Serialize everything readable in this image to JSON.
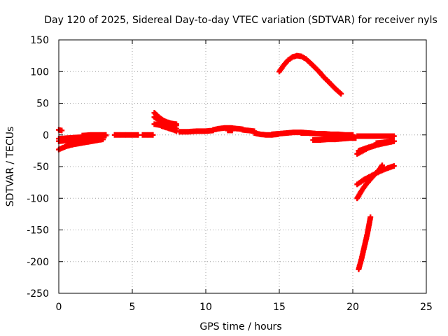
{
  "chart_data": {
    "type": "scatter",
    "title": "Day 120 of 2025, Sidereal Day-to-day VTEC variation (SDTVAR) for receiver nyls",
    "xlabel": "GPS time / hours",
    "ylabel": "SDTVAR / TECUs",
    "xlim": [
      0,
      25
    ],
    "ylim": [
      -250,
      150
    ],
    "xticks": [
      0,
      5,
      10,
      15,
      20,
      25
    ],
    "yticks": [
      -250,
      -200,
      -150,
      -100,
      -50,
      0,
      50,
      100,
      150
    ],
    "grid": true,
    "legend": "none",
    "marker": "plus",
    "color": "#ff0000",
    "series": [
      {
        "x": [
          0.0,
          0.2
        ],
        "y": [
          8,
          7
        ]
      },
      {
        "x": [
          0.0,
          0.5,
          1.0,
          1.5,
          2.0,
          2.5,
          3.0
        ],
        "y": [
          -23,
          -18,
          -15,
          -13,
          -11,
          -9,
          -7
        ]
      },
      {
        "x": [
          0.0,
          0.5,
          1.0,
          1.5,
          2.0,
          2.5,
          3.0
        ],
        "y": [
          -10,
          -9,
          -8,
          -6,
          -5,
          -4,
          -3
        ]
      },
      {
        "x": [
          0.0,
          0.6,
          1.2,
          1.8,
          2.4,
          3.2
        ],
        "y": [
          -6,
          -5,
          -4,
          -3,
          -2,
          -1
        ]
      },
      {
        "x": [
          1.6,
          2.2,
          2.8,
          3.2
        ],
        "y": [
          -1,
          0,
          0,
          0
        ]
      },
      {
        "x": [
          3.8,
          4.2,
          4.6,
          5.0,
          5.4
        ],
        "y": [
          0,
          0,
          0,
          0,
          0
        ]
      },
      {
        "x": [
          5.7,
          6.1,
          6.4
        ],
        "y": [
          0,
          0,
          0
        ]
      },
      {
        "x": [
          6.5,
          6.8,
          7.1,
          7.4,
          7.7,
          8.0
        ],
        "y": [
          35,
          28,
          23,
          20,
          18,
          17
        ]
      },
      {
        "x": [
          6.5,
          6.9,
          7.3,
          7.7,
          8.0
        ],
        "y": [
          28,
          22,
          19,
          16,
          15
        ]
      },
      {
        "x": [
          6.5,
          7.0,
          7.5,
          8.0
        ],
        "y": [
          17,
          15,
          12,
          10
        ]
      },
      {
        "x": [
          7.0,
          7.4,
          7.8,
          8.0
        ],
        "y": [
          14,
          11,
          8,
          6
        ]
      },
      {
        "x": [
          8.2,
          8.8,
          9.4,
          10.0,
          10.5
        ],
        "y": [
          5,
          5,
          6,
          6,
          7
        ]
      },
      {
        "x": [
          10.5,
          10.9,
          11.3,
          11.7,
          12.1,
          12.5
        ],
        "y": [
          8,
          10,
          11,
          11,
          10,
          9
        ]
      },
      {
        "x": [
          11.5,
          11.8
        ],
        "y": [
          7,
          7
        ]
      },
      {
        "x": [
          12.5,
          12.9,
          13.3
        ],
        "y": [
          8,
          7,
          6
        ]
      },
      {
        "x": [
          13.3,
          13.7,
          14.1,
          14.5,
          14.9
        ],
        "y": [
          3,
          1,
          0,
          0,
          1
        ]
      },
      {
        "x": [
          14.5,
          15.0,
          15.5,
          16.0,
          16.5,
          17.0,
          17.5,
          18.0,
          18.5,
          19.0,
          19.5,
          20.0
        ],
        "y": [
          1,
          2,
          3,
          4,
          4,
          3,
          2,
          1,
          0,
          -1,
          -2,
          -3
        ]
      },
      {
        "x": [
          16.5,
          17.0,
          17.5,
          18.0,
          18.5,
          19.0,
          19.5,
          20.0
        ],
        "y": [
          3,
          3,
          2,
          2,
          1,
          1,
          0,
          0
        ]
      },
      {
        "x": [
          17.3,
          17.8,
          18.3,
          18.8,
          19.3,
          19.8,
          20.2
        ],
        "y": [
          -8,
          -8,
          -7,
          -7,
          -6,
          -5,
          -5
        ]
      },
      {
        "x": [
          15.0,
          15.3,
          15.6,
          15.9,
          16.2,
          16.5,
          16.8,
          17.1,
          17.4,
          17.7,
          18.0,
          18.3,
          18.6,
          18.9,
          19.2
        ],
        "y": [
          100,
          110,
          118,
          123,
          125,
          124,
          120,
          114,
          107,
          100,
          92,
          85,
          78,
          71,
          65
        ]
      },
      {
        "x": [
          20.4,
          20.6,
          20.8,
          21.0,
          21.2
        ],
        "y": [
          -212,
          -195,
          -175,
          -155,
          -130
        ]
      },
      {
        "x": [
          20.3,
          20.6,
          20.9,
          21.2,
          21.5,
          21.8,
          22.0
        ],
        "y": [
          -100,
          -88,
          -78,
          -70,
          -62,
          -55,
          -48
        ]
      },
      {
        "x": [
          20.3,
          20.8,
          21.3,
          21.8,
          22.3,
          22.8
        ],
        "y": [
          -78,
          -70,
          -64,
          -58,
          -53,
          -49
        ]
      },
      {
        "x": [
          20.3,
          20.7,
          21.1,
          21.5
        ],
        "y": [
          -30,
          -25,
          -20,
          -17
        ]
      },
      {
        "x": [
          20.4,
          21.0,
          21.6,
          22.2,
          22.8
        ],
        "y": [
          -25,
          -20,
          -16,
          -13,
          -10
        ]
      },
      {
        "x": [
          21.6,
          22.0,
          22.4,
          22.8
        ],
        "y": [
          -13,
          -12,
          -11,
          -10
        ]
      },
      {
        "x": [
          20.3,
          20.8,
          21.3,
          21.8,
          22.3,
          22.8
        ],
        "y": [
          -2,
          -2,
          -2,
          -2,
          -2,
          -2
        ]
      }
    ]
  }
}
